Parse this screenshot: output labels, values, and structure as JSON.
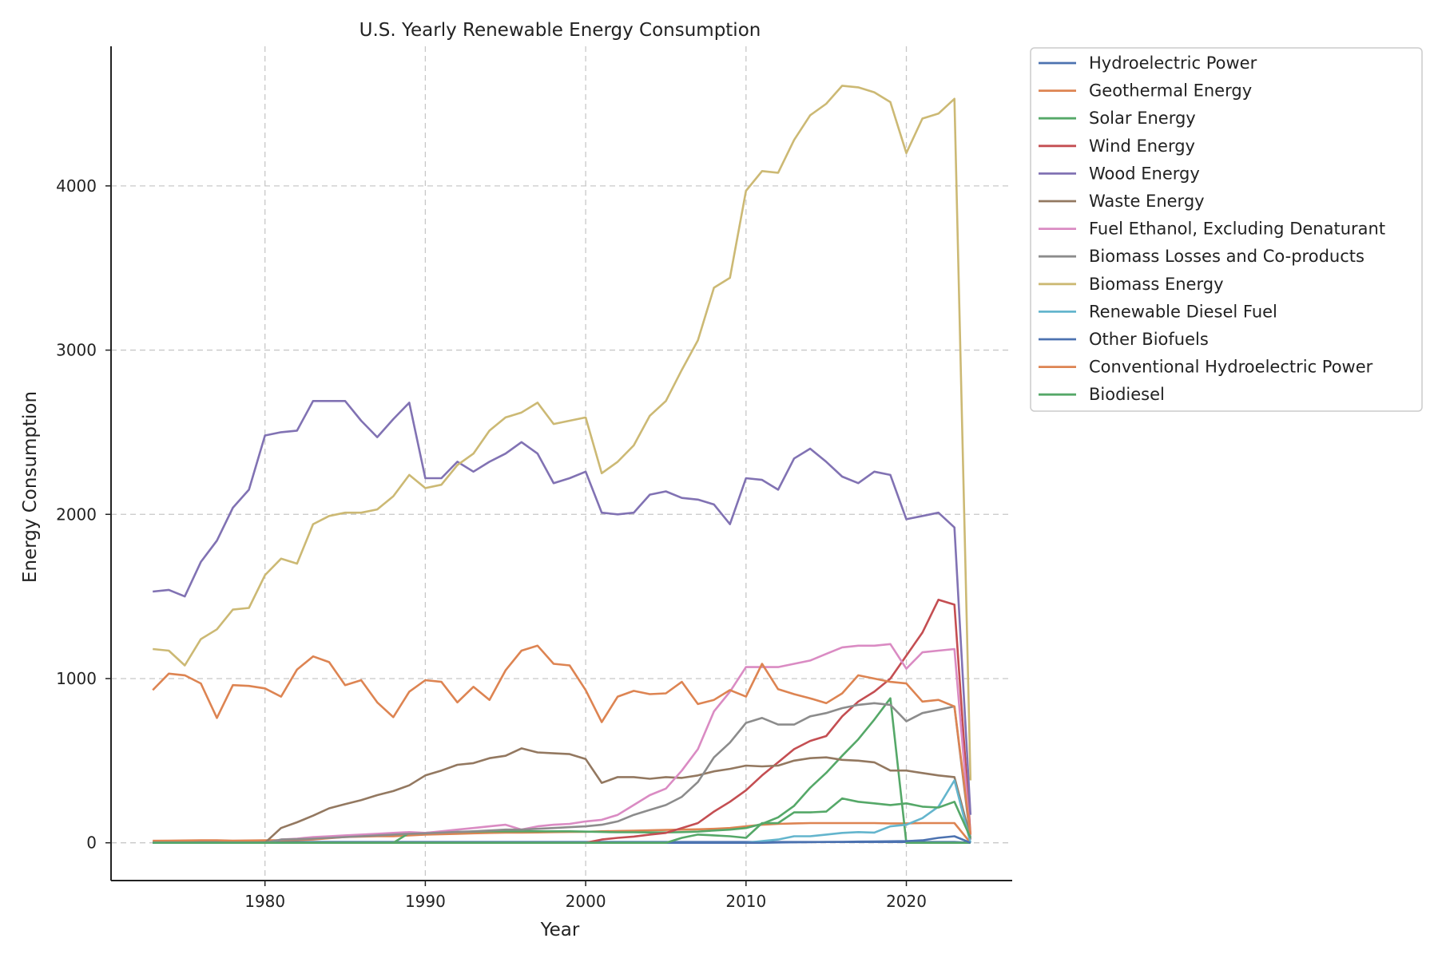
{
  "chart_data": {
    "type": "line",
    "title": "U.S. Yearly Renewable Energy Consumption",
    "xlabel": "Year",
    "ylabel": "Energy Consumption",
    "xlim": [
      1970.4,
      2026.6
    ],
    "ylim": [
      -230,
      4850
    ],
    "xticks": [
      1980,
      1990,
      2000,
      2010,
      2020
    ],
    "yticks": [
      0,
      1000,
      2000,
      3000,
      4000
    ],
    "grid": true,
    "legend_position": "outside-top-right",
    "x": [
      1973,
      1974,
      1975,
      1976,
      1977,
      1978,
      1979,
      1980,
      1981,
      1982,
      1983,
      1984,
      1985,
      1986,
      1987,
      1988,
      1989,
      1990,
      1991,
      1992,
      1993,
      1994,
      1995,
      1996,
      1997,
      1998,
      1999,
      2000,
      2001,
      2002,
      2003,
      2004,
      2005,
      2006,
      2007,
      2008,
      2009,
      2010,
      2011,
      2012,
      2013,
      2014,
      2015,
      2016,
      2017,
      2018,
      2019,
      2020,
      2021,
      2022,
      2023,
      2024
    ],
    "series": [
      {
        "name": "Hydroelectric Power",
        "color": "#4c72b0",
        "values": [
          5,
          5,
          5,
          5,
          5,
          5,
          5,
          5,
          5,
          5,
          5,
          5,
          5,
          5,
          5,
          5,
          5,
          5,
          5,
          5,
          5,
          5,
          5,
          5,
          5,
          5,
          5,
          5,
          5,
          5,
          5,
          5,
          5,
          5,
          5,
          5,
          5,
          5,
          5,
          5,
          5,
          5,
          5,
          5,
          5,
          5,
          5,
          5,
          5,
          5,
          5,
          0
        ]
      },
      {
        "name": "Geothermal Energy",
        "color": "#dd8452",
        "values": [
          12,
          13,
          14,
          15,
          15,
          13,
          14,
          15,
          16,
          17,
          20,
          28,
          35,
          38,
          40,
          40,
          45,
          50,
          52,
          55,
          58,
          60,
          62,
          62,
          63,
          65,
          66,
          67,
          70,
          72,
          74,
          76,
          78,
          80,
          82,
          85,
          90,
          100,
          110,
          115,
          118,
          120,
          120,
          120,
          120,
          120,
          118,
          118,
          120,
          120,
          120,
          0
        ]
      },
      {
        "name": "Solar Energy",
        "color": "#55a868",
        "values": [
          0,
          0,
          0,
          0,
          0,
          0,
          0,
          0,
          0,
          0,
          0,
          0,
          0,
          0,
          0,
          0,
          60,
          60,
          65,
          66,
          68,
          70,
          70,
          70,
          70,
          70,
          70,
          68,
          66,
          64,
          64,
          63,
          63,
          65,
          68,
          75,
          80,
          90,
          115,
          155,
          225,
          335,
          426,
          530,
          630,
          750,
          880,
          0,
          0,
          0,
          0,
          0
        ]
      },
      {
        "name": "Wind Energy",
        "color": "#c44e52",
        "values": [
          0,
          0,
          0,
          0,
          0,
          0,
          0,
          0,
          0,
          0,
          0,
          0,
          0,
          0,
          0,
          0,
          0,
          0,
          0,
          0,
          0,
          0,
          0,
          0,
          0,
          0,
          0,
          0,
          20,
          30,
          38,
          50,
          60,
          90,
          120,
          190,
          250,
          320,
          410,
          490,
          570,
          620,
          650,
          770,
          860,
          920,
          1000,
          1140,
          1280,
          1480,
          1450,
          50
        ]
      },
      {
        "name": "Wood Energy",
        "color": "#8172b3",
        "values": [
          1530,
          1540,
          1500,
          1710,
          1840,
          2040,
          2150,
          2480,
          2500,
          2510,
          2690,
          2690,
          2690,
          2570,
          2470,
          2580,
          2680,
          2220,
          2220,
          2320,
          2260,
          2320,
          2370,
          2440,
          2370,
          2190,
          2220,
          2260,
          2010,
          2000,
          2010,
          2120,
          2140,
          2100,
          2090,
          2060,
          1940,
          2220,
          2210,
          2150,
          2340,
          2400,
          2320,
          2230,
          2190,
          2260,
          2240,
          1970,
          1990,
          2010,
          1920,
          170
        ]
      },
      {
        "name": "Waste Energy",
        "color": "#937860",
        "values": [
          0,
          0,
          0,
          0,
          0,
          0,
          0,
          0,
          90,
          125,
          165,
          210,
          235,
          260,
          290,
          315,
          350,
          410,
          440,
          475,
          485,
          515,
          530,
          575,
          550,
          545,
          540,
          510,
          365,
          400,
          400,
          390,
          400,
          395,
          410,
          435,
          450,
          470,
          465,
          470,
          500,
          515,
          520,
          505,
          500,
          490,
          440,
          440,
          425,
          410,
          400,
          30
        ]
      },
      {
        "name": "Fuel Ethanol, Excluding Denaturant",
        "color": "#da8bc3",
        "values": [
          0,
          0,
          0,
          0,
          0,
          0,
          0,
          0,
          20,
          25,
          35,
          40,
          45,
          50,
          55,
          60,
          65,
          60,
          70,
          80,
          90,
          100,
          110,
          80,
          100,
          110,
          115,
          130,
          140,
          170,
          230,
          290,
          330,
          440,
          570,
          800,
          920,
          1070,
          1070,
          1070,
          1090,
          1110,
          1150,
          1190,
          1200,
          1200,
          1210,
          1060,
          1160,
          1170,
          1180,
          20
        ]
      },
      {
        "name": "Biomass Losses and Co-products",
        "color": "#8c8c8c",
        "values": [
          0,
          0,
          0,
          0,
          0,
          0,
          0,
          0,
          20,
          22,
          25,
          30,
          35,
          40,
          45,
          50,
          55,
          58,
          62,
          66,
          70,
          75,
          80,
          80,
          85,
          90,
          95,
          100,
          110,
          130,
          170,
          200,
          230,
          280,
          370,
          520,
          610,
          730,
          760,
          720,
          720,
          770,
          790,
          820,
          840,
          850,
          840,
          740,
          790,
          810,
          830,
          20
        ]
      },
      {
        "name": "Biomass Energy",
        "color": "#ccb974",
        "values": [
          1180,
          1170,
          1080,
          1240,
          1300,
          1420,
          1430,
          1630,
          1730,
          1700,
          1940,
          1990,
          2010,
          2010,
          2030,
          2110,
          2240,
          2160,
          2180,
          2300,
          2370,
          2510,
          2590,
          2620,
          2680,
          2550,
          2570,
          2590,
          2250,
          2320,
          2420,
          2600,
          2690,
          2880,
          3060,
          3380,
          3440,
          3970,
          4090,
          4080,
          4280,
          4430,
          4500,
          4610,
          4600,
          4570,
          4510,
          4200,
          4410,
          4440,
          4530,
          380
        ]
      },
      {
        "name": "Renewable Diesel Fuel",
        "color": "#64b5cd",
        "values": [
          0,
          0,
          0,
          0,
          0,
          0,
          0,
          0,
          0,
          0,
          0,
          0,
          0,
          0,
          0,
          0,
          0,
          0,
          0,
          0,
          0,
          0,
          0,
          0,
          0,
          0,
          0,
          0,
          0,
          0,
          0,
          0,
          0,
          0,
          0,
          0,
          0,
          0,
          10,
          20,
          40,
          40,
          50,
          60,
          65,
          62,
          100,
          110,
          150,
          220,
          380,
          0
        ]
      },
      {
        "name": "Other Biofuels",
        "color": "#4c72b0",
        "values": [
          0,
          0,
          0,
          0,
          0,
          0,
          0,
          0,
          0,
          0,
          0,
          0,
          0,
          0,
          0,
          0,
          0,
          0,
          0,
          0,
          0,
          0,
          0,
          0,
          0,
          0,
          0,
          0,
          0,
          0,
          0,
          0,
          0,
          0,
          0,
          0,
          0,
          0,
          0,
          2,
          3,
          4,
          5,
          6,
          7,
          8,
          9,
          10,
          15,
          30,
          40,
          0
        ]
      },
      {
        "name": "Conventional Hydroelectric Power",
        "color": "#dd8452",
        "values": [
          930,
          1030,
          1020,
          970,
          760,
          960,
          955,
          940,
          890,
          1055,
          1135,
          1100,
          960,
          990,
          855,
          765,
          920,
          990,
          980,
          855,
          950,
          870,
          1050,
          1170,
          1200,
          1090,
          1080,
          930,
          735,
          890,
          925,
          905,
          910,
          980,
          845,
          870,
          930,
          890,
          1090,
          935,
          905,
          880,
          850,
          910,
          1020,
          1000,
          980,
          970,
          860,
          870,
          830,
          50
        ]
      },
      {
        "name": "Biodiesel",
        "color": "#55a868",
        "values": [
          0,
          0,
          0,
          0,
          0,
          0,
          0,
          0,
          0,
          0,
          0,
          0,
          0,
          0,
          0,
          0,
          0,
          0,
          0,
          0,
          0,
          0,
          0,
          0,
          0,
          0,
          0,
          0,
          0,
          0,
          0,
          0,
          0,
          30,
          50,
          45,
          40,
          30,
          120,
          120,
          185,
          185,
          190,
          270,
          250,
          240,
          230,
          240,
          220,
          215,
          250,
          30
        ]
      }
    ]
  }
}
